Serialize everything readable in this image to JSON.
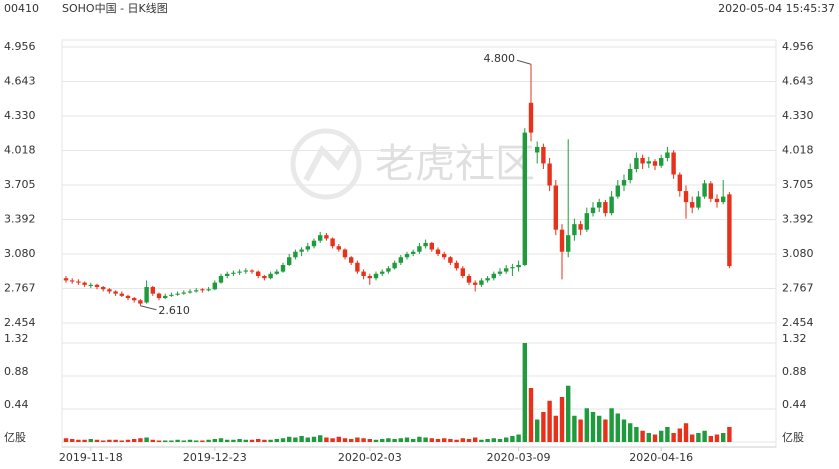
{
  "header": {
    "code": "00410",
    "name": "SOHO中国 - 日K线图",
    "time": "2020-05-04 15:45:37"
  },
  "watermark": "老虎社区",
  "chart_data": {
    "type": "candlestick",
    "categories": [
      null,
      null,
      null,
      null,
      "2019-11-18",
      null,
      null,
      null,
      null,
      null,
      null,
      null,
      null,
      null,
      null,
      null,
      null,
      null,
      null,
      null,
      null,
      null,
      null,
      null,
      "2019-12-23",
      null,
      null,
      null,
      null,
      null,
      null,
      null,
      null,
      null,
      null,
      null,
      null,
      null,
      null,
      null,
      null,
      null,
      null,
      null,
      null,
      null,
      null,
      null,
      null,
      "2020-02-03",
      null,
      null,
      null,
      null,
      null,
      null,
      null,
      null,
      null,
      null,
      null,
      null,
      null,
      null,
      null,
      null,
      null,
      null,
      null,
      null,
      null,
      null,
      null,
      "2020-03-09",
      null,
      null,
      null,
      null,
      null,
      null,
      null,
      null,
      null,
      null,
      null,
      null,
      null,
      null,
      null,
      null,
      null,
      null,
      null,
      null,
      null,
      null,
      "2020-04-16",
      null,
      null,
      null,
      null,
      null,
      null,
      null,
      null,
      null,
      null,
      null
    ],
    "ohlc": [
      [
        2.86,
        2.88,
        2.82,
        2.84
      ],
      [
        2.84,
        2.86,
        2.81,
        2.83
      ],
      [
        2.83,
        2.85,
        2.8,
        2.82
      ],
      [
        2.82,
        2.83,
        2.78,
        2.8
      ],
      [
        2.79,
        2.82,
        2.77,
        2.8
      ],
      [
        2.8,
        2.81,
        2.76,
        2.78
      ],
      [
        2.78,
        2.79,
        2.74,
        2.76
      ],
      [
        2.76,
        2.77,
        2.72,
        2.74
      ],
      [
        2.74,
        2.75,
        2.7,
        2.72
      ],
      [
        2.72,
        2.74,
        2.69,
        2.7
      ],
      [
        2.7,
        2.71,
        2.66,
        2.68
      ],
      [
        2.68,
        2.69,
        2.64,
        2.66
      ],
      [
        2.66,
        2.67,
        2.61,
        2.63
      ],
      [
        2.64,
        2.84,
        2.63,
        2.78
      ],
      [
        2.78,
        2.79,
        2.7,
        2.72
      ],
      [
        2.72,
        2.73,
        2.66,
        2.68
      ],
      [
        2.68,
        2.72,
        2.67,
        2.7
      ],
      [
        2.7,
        2.73,
        2.69,
        2.71
      ],
      [
        2.71,
        2.74,
        2.7,
        2.72
      ],
      [
        2.72,
        2.75,
        2.71,
        2.73
      ],
      [
        2.73,
        2.76,
        2.72,
        2.74
      ],
      [
        2.74,
        2.77,
        2.73,
        2.75
      ],
      [
        2.76,
        2.77,
        2.73,
        2.75
      ],
      [
        2.75,
        2.78,
        2.74,
        2.76
      ],
      [
        2.76,
        2.84,
        2.75,
        2.82
      ],
      [
        2.82,
        2.9,
        2.81,
        2.88
      ],
      [
        2.88,
        2.92,
        2.86,
        2.9
      ],
      [
        2.9,
        2.93,
        2.88,
        2.91
      ],
      [
        2.91,
        2.94,
        2.89,
        2.92
      ],
      [
        2.92,
        2.95,
        2.9,
        2.93
      ],
      [
        2.93,
        2.94,
        2.9,
        2.92
      ],
      [
        2.92,
        2.93,
        2.86,
        2.88
      ],
      [
        2.88,
        2.89,
        2.84,
        2.86
      ],
      [
        2.86,
        2.92,
        2.85,
        2.9
      ],
      [
        2.9,
        2.94,
        2.89,
        2.92
      ],
      [
        2.92,
        3.0,
        2.91,
        2.98
      ],
      [
        2.98,
        3.08,
        2.97,
        3.05
      ],
      [
        3.05,
        3.12,
        3.03,
        3.1
      ],
      [
        3.1,
        3.14,
        3.06,
        3.12
      ],
      [
        3.12,
        3.18,
        3.1,
        3.15
      ],
      [
        3.15,
        3.22,
        3.13,
        3.2
      ],
      [
        3.2,
        3.28,
        3.18,
        3.25
      ],
      [
        3.25,
        3.27,
        3.2,
        3.22
      ],
      [
        3.22,
        3.23,
        3.13,
        3.15
      ],
      [
        3.15,
        3.17,
        3.1,
        3.12
      ],
      [
        3.12,
        3.13,
        3.03,
        3.05
      ],
      [
        3.05,
        3.06,
        2.98,
        3.0
      ],
      [
        3.0,
        3.02,
        2.9,
        2.92
      ],
      [
        2.92,
        2.94,
        2.85,
        2.88
      ],
      [
        2.88,
        2.9,
        2.8,
        2.86
      ],
      [
        2.86,
        2.92,
        2.84,
        2.9
      ],
      [
        2.9,
        2.94,
        2.88,
        2.92
      ],
      [
        2.92,
        2.97,
        2.9,
        2.95
      ],
      [
        2.95,
        3.02,
        2.94,
        3.0
      ],
      [
        3.0,
        3.07,
        2.98,
        3.05
      ],
      [
        3.05,
        3.1,
        3.03,
        3.08
      ],
      [
        3.08,
        3.12,
        3.06,
        3.1
      ],
      [
        3.1,
        3.18,
        3.08,
        3.15
      ],
      [
        3.15,
        3.21,
        3.13,
        3.18
      ],
      [
        3.18,
        3.19,
        3.1,
        3.12
      ],
      [
        3.12,
        3.14,
        3.06,
        3.08
      ],
      [
        3.08,
        3.1,
        3.03,
        3.05
      ],
      [
        3.05,
        3.06,
        2.98,
        3.0
      ],
      [
        3.0,
        3.02,
        2.93,
        2.95
      ],
      [
        2.95,
        2.97,
        2.86,
        2.88
      ],
      [
        2.88,
        2.9,
        2.8,
        2.82
      ],
      [
        2.82,
        2.84,
        2.74,
        2.8
      ],
      [
        2.8,
        2.86,
        2.78,
        2.84
      ],
      [
        2.84,
        2.88,
        2.82,
        2.86
      ],
      [
        2.86,
        2.92,
        2.84,
        2.9
      ],
      [
        2.9,
        2.95,
        2.88,
        2.92
      ],
      [
        2.92,
        2.98,
        2.9,
        2.95
      ],
      [
        2.95,
        2.99,
        2.88,
        2.96
      ],
      [
        2.96,
        3.02,
        2.92,
        2.98
      ],
      [
        2.98,
        4.22,
        2.97,
        4.18
      ],
      [
        4.45,
        4.8,
        4.1,
        4.18
      ],
      [
        4.0,
        4.1,
        3.9,
        4.05
      ],
      [
        4.05,
        4.08,
        3.85,
        3.9
      ],
      [
        3.9,
        3.95,
        3.65,
        3.7
      ],
      [
        3.7,
        3.75,
        3.25,
        3.3
      ],
      [
        3.3,
        3.35,
        2.85,
        3.1
      ],
      [
        3.1,
        4.12,
        3.05,
        3.25
      ],
      [
        3.25,
        3.4,
        3.2,
        3.35
      ],
      [
        3.35,
        3.38,
        3.25,
        3.3
      ],
      [
        3.3,
        3.5,
        3.28,
        3.45
      ],
      [
        3.45,
        3.55,
        3.42,
        3.5
      ],
      [
        3.5,
        3.58,
        3.46,
        3.55
      ],
      [
        3.55,
        3.57,
        3.42,
        3.45
      ],
      [
        3.45,
        3.65,
        3.43,
        3.6
      ],
      [
        3.6,
        3.75,
        3.58,
        3.7
      ],
      [
        3.7,
        3.8,
        3.65,
        3.75
      ],
      [
        3.75,
        3.9,
        3.72,
        3.85
      ],
      [
        3.85,
        4.0,
        3.82,
        3.95
      ],
      [
        3.95,
        3.98,
        3.85,
        3.9
      ],
      [
        3.9,
        3.96,
        3.86,
        3.92
      ],
      [
        3.92,
        3.94,
        3.84,
        3.88
      ],
      [
        3.88,
        3.98,
        3.86,
        3.95
      ],
      [
        3.95,
        4.05,
        3.92,
        4.0
      ],
      [
        4.0,
        4.02,
        3.76,
        3.8
      ],
      [
        3.8,
        3.82,
        3.6,
        3.65
      ],
      [
        3.65,
        3.7,
        3.4,
        3.55
      ],
      [
        3.55,
        3.6,
        3.45,
        3.5
      ],
      [
        3.5,
        3.65,
        3.48,
        3.6
      ],
      [
        3.6,
        3.75,
        3.58,
        3.72
      ],
      [
        3.72,
        3.74,
        3.55,
        3.58
      ],
      [
        3.58,
        3.62,
        3.5,
        3.55
      ],
      [
        3.55,
        3.75,
        3.53,
        3.6
      ],
      [
        3.62,
        3.64,
        2.95,
        2.97
      ]
    ],
    "volume": [
      0.05,
      0.04,
      0.03,
      0.03,
      0.04,
      0.03,
      0.02,
      0.03,
      0.03,
      0.02,
      0.03,
      0.04,
      0.05,
      0.06,
      0.03,
      0.02,
      0.02,
      0.02,
      0.03,
      0.02,
      0.03,
      0.02,
      0.02,
      0.03,
      0.04,
      0.05,
      0.03,
      0.03,
      0.04,
      0.03,
      0.03,
      0.04,
      0.03,
      0.03,
      0.04,
      0.05,
      0.07,
      0.06,
      0.08,
      0.06,
      0.07,
      0.09,
      0.06,
      0.05,
      0.07,
      0.05,
      0.04,
      0.06,
      0.05,
      0.04,
      0.03,
      0.04,
      0.05,
      0.04,
      0.05,
      0.06,
      0.04,
      0.07,
      0.06,
      0.05,
      0.04,
      0.05,
      0.04,
      0.03,
      0.05,
      0.04,
      0.06,
      0.03,
      0.04,
      0.05,
      0.04,
      0.06,
      0.08,
      0.1,
      1.32,
      0.72,
      0.3,
      0.4,
      0.55,
      0.35,
      0.6,
      0.75,
      0.35,
      0.3,
      0.45,
      0.4,
      0.35,
      0.3,
      0.45,
      0.38,
      0.3,
      0.25,
      0.2,
      0.15,
      0.12,
      0.1,
      0.15,
      0.2,
      0.12,
      0.18,
      0.25,
      0.1,
      0.12,
      0.15,
      0.08,
      0.1,
      0.12,
      0.2
    ],
    "up_color": "#1e9b3c",
    "down_color": "#e8311a",
    "ylim": [
      2.454,
      4.956
    ],
    "yticks": [
      4.956,
      4.643,
      {
        "value": 4.33,
        "label": "4.330"
      },
      4.018,
      3.705,
      3.392,
      {
        "value": 3.08,
        "label": "3.080"
      },
      2.767,
      2.454
    ],
    "y2lim": [
      0,
      1.32
    ],
    "y2ticks": [
      1.32,
      0.88,
      0.44,
      {
        "value": 0,
        "label": "亿股"
      }
    ],
    "annotations": [
      {
        "value": 4.8,
        "label": "4.800"
      },
      {
        "value": 2.61,
        "label": "2.610"
      }
    ],
    "grid": true
  }
}
